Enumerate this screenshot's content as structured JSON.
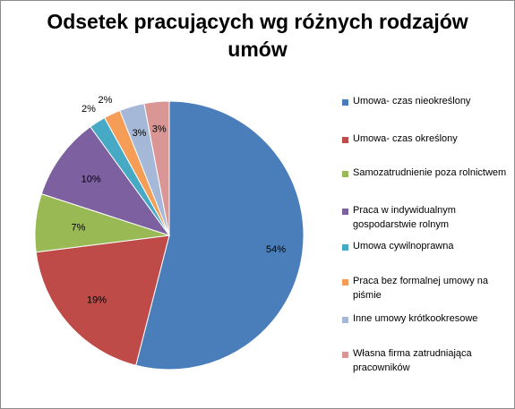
{
  "chart_data": {
    "type": "pie",
    "title": "Odsetek pracujących wg różnych rodzajów\numów",
    "categories": [
      "Umowa- czas nieokreślony",
      "Umowa- czas określony",
      "Samozatrudnienie poza rolnictwem",
      "Praca w indywidualnym gospodarstwie rolnym",
      "Umowa cywilnoprawna",
      "Praca bez formalnej umowy na piśmie",
      "Inne umowy krótkookresowe",
      "Własna firma zatrudniająca pracowników"
    ],
    "values": [
      54,
      19,
      7,
      10,
      2,
      2,
      3,
      3
    ],
    "data_labels": [
      "54%",
      "19%",
      "7%",
      "10%",
      "2%",
      "2%",
      "3%",
      "3%"
    ],
    "colors": [
      "#4a7ebb",
      "#be4b48",
      "#98b954",
      "#7d60a0",
      "#46aac5",
      "#f59d56",
      "#a5b8d8",
      "#d99694"
    ],
    "legend_position": "right"
  }
}
